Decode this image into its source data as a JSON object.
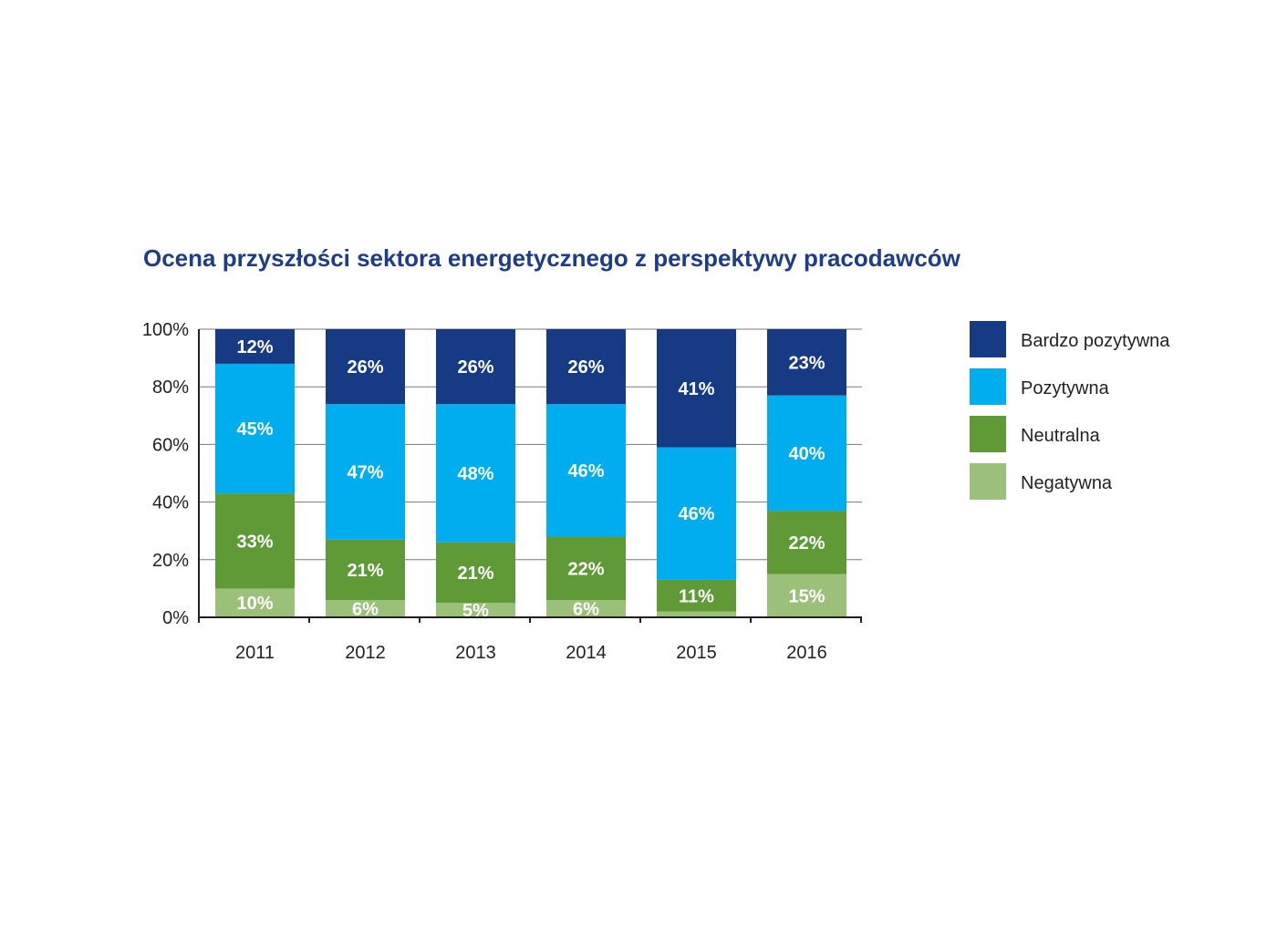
{
  "chart_data": {
    "type": "bar",
    "stacked": true,
    "title": "Ocena przyszłości sektora energetycznego z perspektywy pracodawców",
    "xlabel": "",
    "ylabel": "",
    "ylim": [
      0,
      100
    ],
    "yticks": [
      "0%",
      "20%",
      "40%",
      "60%",
      "80%",
      "100%"
    ],
    "categories": [
      "2011",
      "2012",
      "2013",
      "2014",
      "2015",
      "2016"
    ],
    "series": [
      {
        "name": "Negatywna",
        "color": "#9bc07a",
        "values": [
          10,
          6,
          5,
          6,
          2,
          15
        ],
        "labels": [
          "10%",
          "6%",
          "5%",
          "6%",
          "",
          "15%"
        ]
      },
      {
        "name": "Neutralna",
        "color": "#5f9a37",
        "values": [
          33,
          21,
          21,
          22,
          11,
          22
        ],
        "labels": [
          "33%",
          "21%",
          "21%",
          "22%",
          "11%",
          "22%"
        ]
      },
      {
        "name": "Pozytywna",
        "color": "#00adee",
        "values": [
          45,
          47,
          48,
          46,
          46,
          40
        ],
        "labels": [
          "45%",
          "47%",
          "48%",
          "46%",
          "46%",
          "40%"
        ]
      },
      {
        "name": "Bardzo pozytywna",
        "color": "#173a85",
        "values": [
          12,
          26,
          26,
          26,
          41,
          23
        ],
        "labels": [
          "12%",
          "26%",
          "26%",
          "26%",
          "41%",
          "23%"
        ]
      }
    ],
    "legend": {
      "position": "right",
      "order": [
        "Bardzo pozytywna",
        "Pozytywna",
        "Neutralna",
        "Negatywna"
      ]
    }
  }
}
